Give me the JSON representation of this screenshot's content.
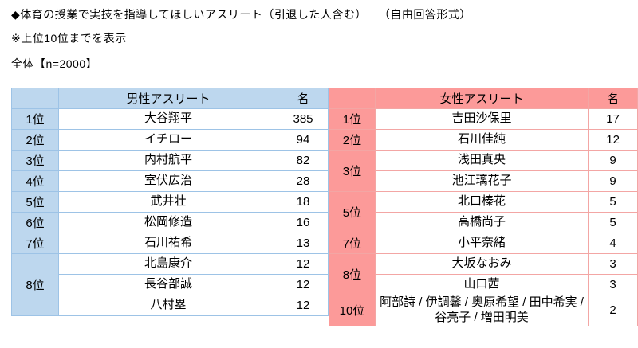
{
  "header": {
    "title": "◆体育の授業で実技を指導してほしいアスリート（引退した人含む）　　（自由回答形式）",
    "note": "※上位10位までを表示",
    "sample": "全体【n=2000】"
  },
  "colors": {
    "male_header_bg": "#bdd7ee",
    "male_border": "#9dc3e6",
    "female_header_bg": "#fc9a99",
    "female_border": "#f3a6a4"
  },
  "tables": [
    {
      "id": "male",
      "name_header": "男性アスリート",
      "count_header": "名",
      "rows": [
        {
          "rank": "1位",
          "rank_span": 1,
          "name": "大谷翔平",
          "count": "385"
        },
        {
          "rank": "2位",
          "rank_span": 1,
          "name": "イチロー",
          "count": "94"
        },
        {
          "rank": "3位",
          "rank_span": 1,
          "name": "内村航平",
          "count": "82"
        },
        {
          "rank": "4位",
          "rank_span": 1,
          "name": "室伏広治",
          "count": "28"
        },
        {
          "rank": "5位",
          "rank_span": 1,
          "name": "武井壮",
          "count": "18"
        },
        {
          "rank": "6位",
          "rank_span": 1,
          "name": "松岡修造",
          "count": "16"
        },
        {
          "rank": "7位",
          "rank_span": 1,
          "name": "石川祐希",
          "count": "13"
        },
        {
          "rank": "8位",
          "rank_span": 3,
          "name": "北島康介",
          "count": "12"
        },
        {
          "rank": null,
          "name": "長谷部誠",
          "count": "12"
        },
        {
          "rank": null,
          "name": "八村塁",
          "count": "12"
        }
      ]
    },
    {
      "id": "female",
      "name_header": "女性アスリート",
      "count_header": "名",
      "rows": [
        {
          "rank": "1位",
          "rank_span": 1,
          "name": "吉田沙保里",
          "count": "17"
        },
        {
          "rank": "2位",
          "rank_span": 1,
          "name": "石川佳純",
          "count": "12"
        },
        {
          "rank": "3位",
          "rank_span": 2,
          "name": "浅田真央",
          "count": "9"
        },
        {
          "rank": null,
          "name": "池江璃花子",
          "count": "9"
        },
        {
          "rank": "5位",
          "rank_span": 2,
          "name": "北口榛花",
          "count": "5"
        },
        {
          "rank": null,
          "name": "高橋尚子",
          "count": "5"
        },
        {
          "rank": "7位",
          "rank_span": 1,
          "name": "小平奈緒",
          "count": "4"
        },
        {
          "rank": "8位",
          "rank_span": 2,
          "name": "大坂なおみ",
          "count": "3"
        },
        {
          "rank": null,
          "name": "山口茜",
          "count": "3"
        },
        {
          "rank": "10位",
          "rank_span": 1,
          "name": "阿部詩 / 伊調馨 / 奥原希望 / 田中希実 / 谷亮子 / 増田明美",
          "count": "2"
        }
      ]
    }
  ]
}
